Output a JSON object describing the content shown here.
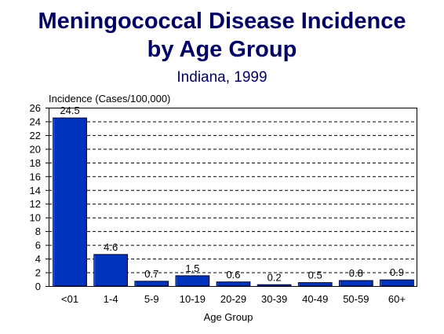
{
  "chart_data": {
    "type": "bar",
    "title": "Meningococcal Disease Incidence",
    "title_line2": "by Age Group",
    "subtitle": "Indiana, 1999",
    "ylabel": "Incidence (Cases/100,000)",
    "xlabel": "Age Group",
    "categories": [
      "<01",
      "1-4",
      "5-9",
      "10-19",
      "20-29",
      "30-39",
      "40-49",
      "50-59",
      "60+"
    ],
    "values": [
      24.5,
      4.6,
      0.7,
      1.5,
      0.6,
      0.2,
      0.5,
      0.8,
      0.9
    ],
    "ylim": [
      0,
      26
    ],
    "yticks": [
      0,
      2,
      4,
      6,
      8,
      10,
      12,
      14,
      16,
      18,
      20,
      22,
      24,
      26
    ],
    "grid": true,
    "legend": "none",
    "colors": {
      "bar_fill": "#0033bb",
      "bar_stroke": "#000022",
      "title": "#000066",
      "grid": "#000000"
    }
  }
}
